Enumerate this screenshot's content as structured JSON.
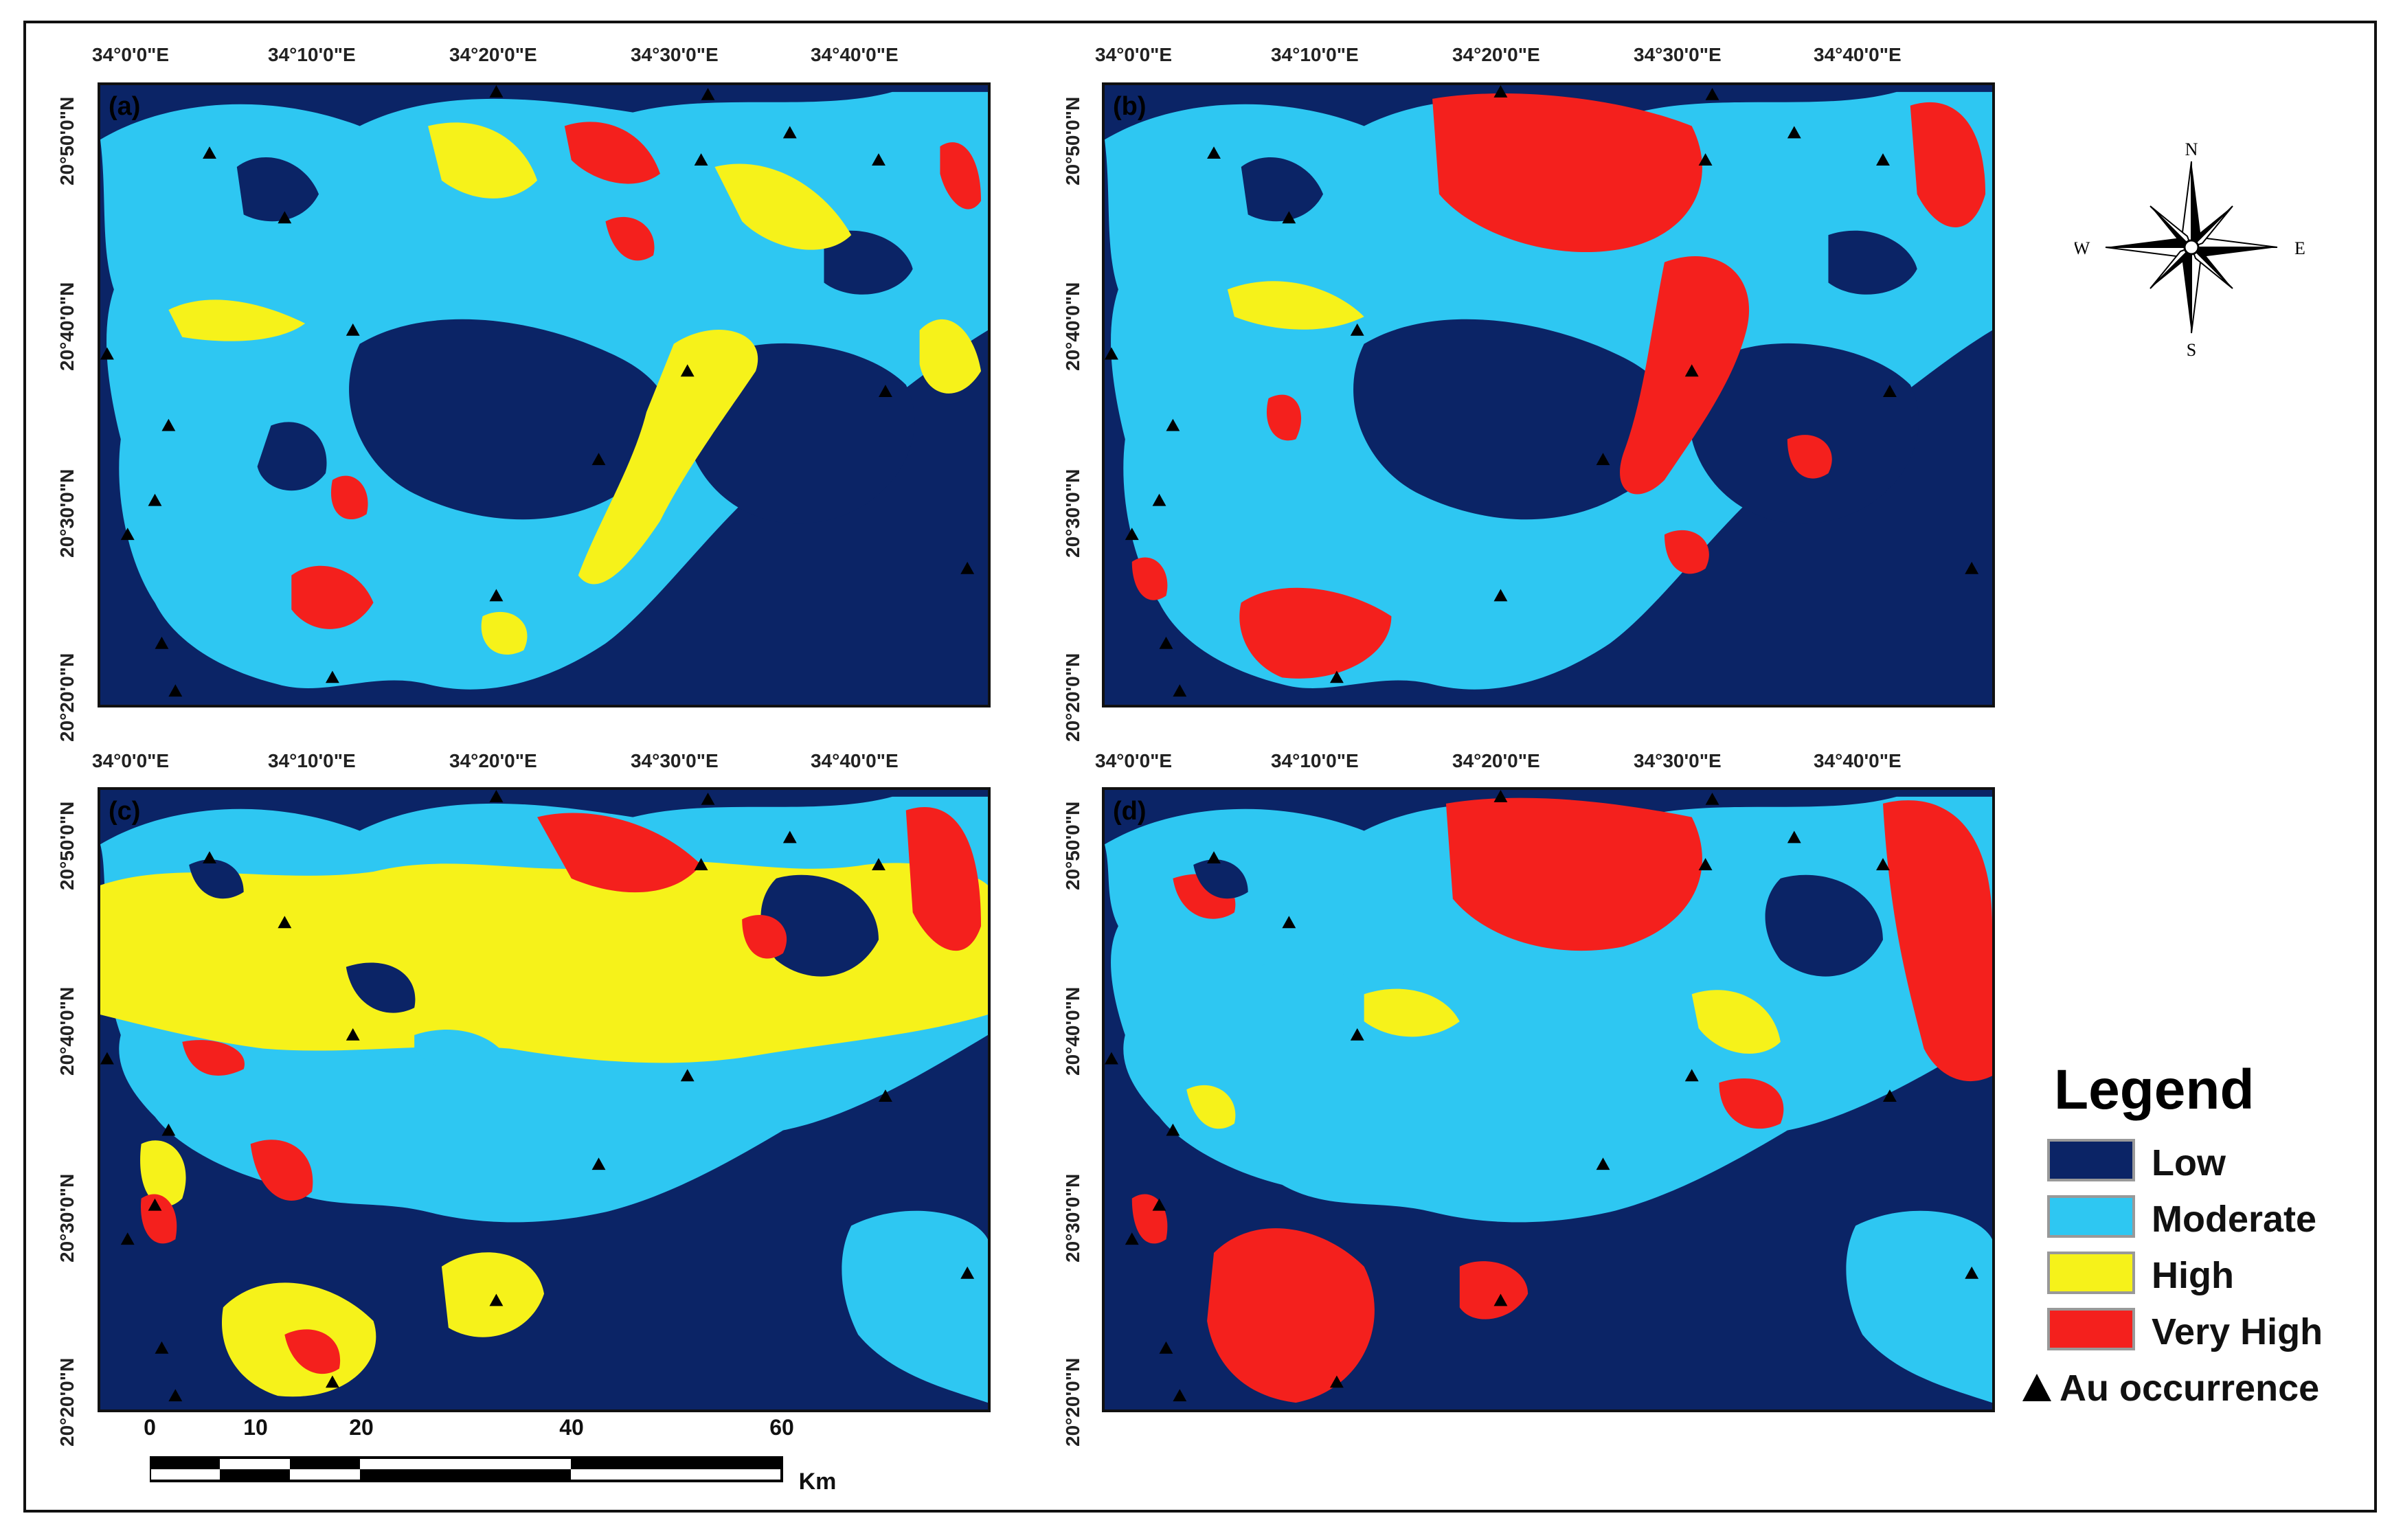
{
  "panels": [
    {
      "id": "a",
      "label": "(a)"
    },
    {
      "id": "b",
      "label": "(b)"
    },
    {
      "id": "c",
      "label": "(c)"
    },
    {
      "id": "d",
      "label": "(d)"
    }
  ],
  "longitude_labels": [
    "34°0'0\"E",
    "34°10'0\"E",
    "34°20'0\"E",
    "34°30'0\"E",
    "34°40'0\"E"
  ],
  "latitude_labels": [
    "20°50'0\"N",
    "20°40'0\"N",
    "20°30'0\"N",
    "20°20'0\"N"
  ],
  "compass": {
    "n": "N",
    "s": "S",
    "e": "E",
    "w": "W"
  },
  "legend": {
    "title": "Legend",
    "classes": [
      {
        "label": "Low",
        "color": "#0b2466"
      },
      {
        "label": "Moderate",
        "color": "#2ec7f2"
      },
      {
        "label": "High",
        "color": "#f6f21a"
      },
      {
        "label": "Very High",
        "color": "#f4201d"
      }
    ],
    "au_label": "Au occurrence"
  },
  "scale_bar": {
    "ticks": [
      "0",
      "10",
      "20",
      "40",
      "60"
    ],
    "unit": "Km"
  },
  "colors": {
    "low": "#0b2466",
    "moderate": "#2ec7f2",
    "high": "#f6f21a",
    "very_high": "#f4201d",
    "marker": "#000000"
  }
}
